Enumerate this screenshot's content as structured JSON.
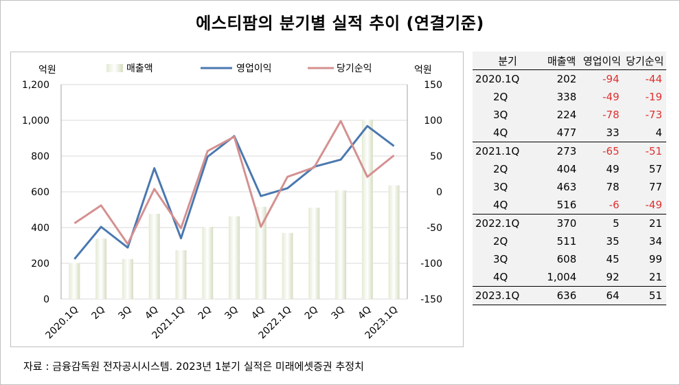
{
  "title": "에스티팜의 분기별 실적 추이 (연결기준)",
  "source": "자료 : 금융감독원 전자공시시스템. 2023년 1분기 실적은 미래에셋증권 추정치",
  "chart_data": {
    "type": "bar+line",
    "categories": [
      "2020.1Q",
      "2Q",
      "3Q",
      "4Q",
      "2021.1Q",
      "2Q",
      "3Q",
      "4Q",
      "2022.1Q",
      "2Q",
      "3Q",
      "4Q",
      "2023.1Q"
    ],
    "left_axis": {
      "label": "억원",
      "min": 0,
      "max": 1200,
      "ticks": [
        "0",
        "200",
        "400",
        "600",
        "800",
        "1,000",
        "1,200"
      ],
      "tick_values": [
        0,
        200,
        400,
        600,
        800,
        1000,
        1200
      ]
    },
    "right_axis": {
      "label": "억원",
      "min": -150,
      "max": 150,
      "ticks": [
        "-150",
        "-100",
        "-50",
        "0",
        "50",
        "100",
        "150"
      ],
      "tick_values": [
        -150,
        -100,
        -50,
        0,
        50,
        100,
        150
      ]
    },
    "series": [
      {
        "name": "매출액",
        "kind": "bar",
        "axis": "left",
        "values": [
          202,
          338,
          224,
          477,
          273,
          404,
          463,
          516,
          370,
          511,
          608,
          1004,
          636
        ]
      },
      {
        "name": "영업이익",
        "kind": "line",
        "axis": "right",
        "color": "#4a78b0",
        "values": [
          -94,
          -49,
          -78,
          33,
          -65,
          49,
          78,
          -6,
          5,
          35,
          45,
          92,
          64
        ]
      },
      {
        "name": "당기순익",
        "kind": "line",
        "axis": "right",
        "color": "#d49090",
        "values": [
          -44,
          -19,
          -73,
          4,
          -51,
          57,
          77,
          -49,
          21,
          34,
          99,
          21,
          51
        ]
      }
    ],
    "legend_placement": "top"
  },
  "table": {
    "headers": [
      "분기",
      "매출액",
      "영업이익",
      "당기순익"
    ],
    "rows": [
      {
        "q": "2020.1Q",
        "sub": false,
        "sep": false,
        "sales": "202",
        "op": "-94",
        "net": "-44"
      },
      {
        "q": "2Q",
        "sub": true,
        "sep": false,
        "sales": "338",
        "op": "-49",
        "net": "-19"
      },
      {
        "q": "3Q",
        "sub": true,
        "sep": false,
        "sales": "224",
        "op": "-78",
        "net": "-73"
      },
      {
        "q": "4Q",
        "sub": true,
        "sep": true,
        "sales": "477",
        "op": "33",
        "net": "4"
      },
      {
        "q": "2021.1Q",
        "sub": false,
        "sep": false,
        "sales": "273",
        "op": "-65",
        "net": "-51"
      },
      {
        "q": "2Q",
        "sub": true,
        "sep": false,
        "sales": "404",
        "op": "49",
        "net": "57"
      },
      {
        "q": "3Q",
        "sub": true,
        "sep": false,
        "sales": "463",
        "op": "78",
        "net": "77"
      },
      {
        "q": "4Q",
        "sub": true,
        "sep": true,
        "sales": "516",
        "op": "-6",
        "net": "-49"
      },
      {
        "q": "2022.1Q",
        "sub": false,
        "sep": false,
        "sales": "370",
        "op": "5",
        "net": "21"
      },
      {
        "q": "2Q",
        "sub": true,
        "sep": false,
        "sales": "511",
        "op": "35",
        "net": "34"
      },
      {
        "q": "3Q",
        "sub": true,
        "sep": false,
        "sales": "608",
        "op": "45",
        "net": "99"
      },
      {
        "q": "4Q",
        "sub": true,
        "sep": true,
        "sales": "1,004",
        "op": "92",
        "net": "21"
      },
      {
        "q": "2023.1Q",
        "sub": false,
        "sep": true,
        "sales": "636",
        "op": "64",
        "net": "51"
      }
    ]
  }
}
